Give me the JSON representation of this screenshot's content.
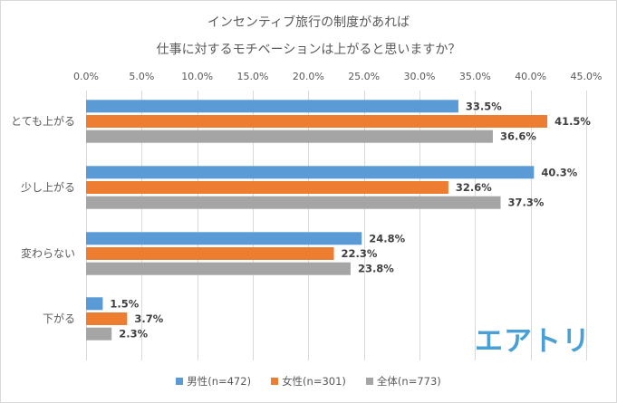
{
  "chart_data": {
    "type": "bar",
    "orientation": "horizontal",
    "title": "インセンティブ旅行の制度があれば 仕事に対するモチベーションは上がると思いますか？",
    "title_lines": [
      "インセンティブ旅行の制度があれば",
      "仕事に対するモチベーションは上がると思いますか？"
    ],
    "categories": [
      "とても上がる",
      "少し上がる",
      "変わらない",
      "下がる"
    ],
    "series": [
      {
        "name": "男性(n=472)",
        "color": "#5b9bd5",
        "values": [
          33.5,
          40.3,
          24.8,
          1.5
        ]
      },
      {
        "name": "女性(n=301)",
        "color": "#ed7d31",
        "values": [
          41.5,
          32.6,
          22.3,
          3.7
        ]
      },
      {
        "name": "全体(n=773)",
        "color": "#a5a5a5",
        "values": [
          36.6,
          37.3,
          23.8,
          2.3
        ]
      }
    ],
    "data_labels": [
      [
        "33.5%",
        "40.3%",
        "24.8%",
        "1.5%"
      ],
      [
        "41.5%",
        "32.6%",
        "22.3%",
        "3.7%"
      ],
      [
        "36.6%",
        "37.3%",
        "23.8%",
        "2.3%"
      ]
    ],
    "xlim": [
      0,
      45
    ],
    "xticks": [
      0,
      5,
      10,
      15,
      20,
      25,
      30,
      35,
      40,
      45
    ],
    "xtick_labels": [
      "0.0%",
      "5.0%",
      "10.0%",
      "15.0%",
      "20.0%",
      "25.0%",
      "30.0%",
      "35.0%",
      "40.0%",
      "45.0%"
    ],
    "xaxis_position": "top",
    "xlabel": "",
    "ylabel": "",
    "grid": true,
    "legend_position": "bottom"
  },
  "logo": {
    "text": "エアトリ",
    "color": "#4a9fd5"
  },
  "gridline_color": "#d9d9d9"
}
